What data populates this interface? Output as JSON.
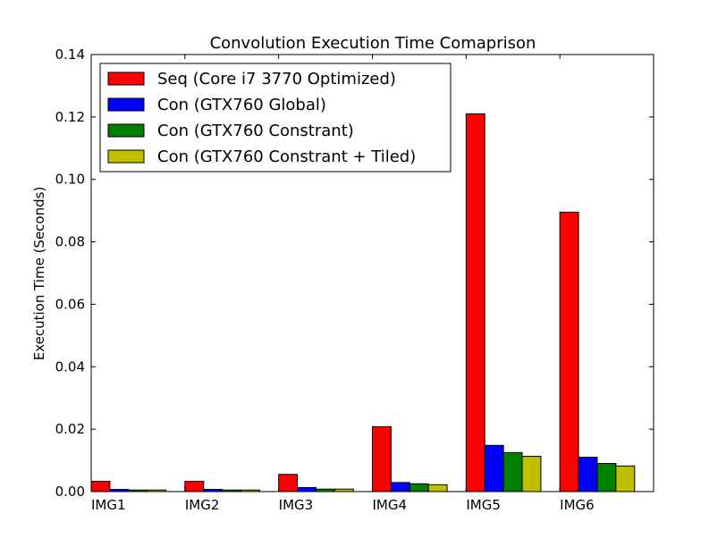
{
  "chart_data": {
    "type": "bar",
    "title": "Convolution Execution Time Comaprison",
    "xlabel": "",
    "ylabel": "Execution Time (Seconds)",
    "ylim": [
      0,
      0.14
    ],
    "yticks": [
      "0.00",
      "0.02",
      "0.04",
      "0.06",
      "0.08",
      "0.10",
      "0.12",
      "0.14"
    ],
    "categories": [
      "IMG1",
      "IMG2",
      "IMG3",
      "IMG4",
      "IMG5",
      "IMG6"
    ],
    "legend_position": "top-left",
    "grid": false,
    "series": [
      {
        "name": "Seq (Core i7 3770 Optimized)",
        "color": "#ff0000",
        "values": [
          0.0033,
          0.0033,
          0.0055,
          0.0208,
          0.121,
          0.0895
        ]
      },
      {
        "name": "Con (GTX760 Global)",
        "color": "#0000ff",
        "values": [
          0.0007,
          0.0007,
          0.0013,
          0.0029,
          0.0148,
          0.011
        ]
      },
      {
        "name": "Con (GTX760 Constrant)",
        "color": "#008000",
        "values": [
          0.0005,
          0.0005,
          0.0008,
          0.0025,
          0.0125,
          0.009
        ]
      },
      {
        "name": "Con (GTX760 Constrant + Tiled)",
        "color": "#bfbf00",
        "values": [
          0.0005,
          0.0005,
          0.0008,
          0.0022,
          0.0113,
          0.0082
        ]
      }
    ]
  }
}
